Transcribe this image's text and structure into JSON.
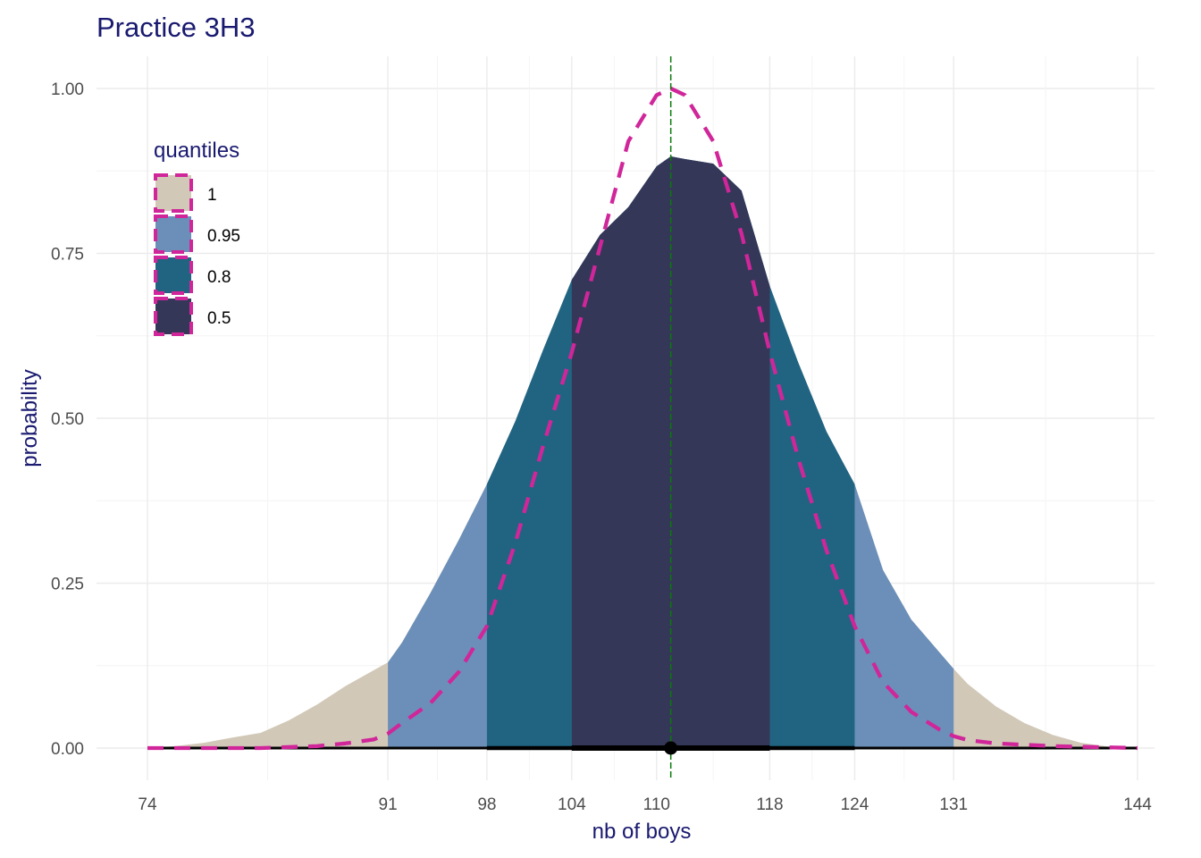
{
  "chart_data": {
    "type": "area",
    "title": "Practice 3H3",
    "xlabel": "nb of boys",
    "ylabel": "probability",
    "xlim": [
      74,
      144
    ],
    "ylim": [
      0,
      1
    ],
    "x_ticks": [
      74,
      91,
      98,
      104,
      110,
      118,
      124,
      131,
      144
    ],
    "y_ticks": [
      "0.00",
      "0.25",
      "0.50",
      "0.75",
      "1.00"
    ],
    "grid": true,
    "legend": {
      "title": "quantiles",
      "placement": "top-left",
      "items": [
        {
          "label": "1",
          "color": "#d1c8b7"
        },
        {
          "label": "0.95",
          "color": "#6b8fb8"
        },
        {
          "label": "0.8",
          "color": "#206481"
        },
        {
          "label": "0.5",
          "color": "#343758"
        }
      ]
    },
    "density_series": {
      "x": [
        74,
        76,
        78,
        80,
        82,
        84,
        86,
        88,
        90,
        91,
        92,
        94,
        96,
        98,
        100,
        102,
        104,
        106,
        108,
        110,
        111,
        112,
        114,
        116,
        118,
        120,
        122,
        124,
        126,
        128,
        130,
        131,
        132,
        134,
        136,
        138,
        140,
        142,
        144
      ],
      "y": [
        0.0,
        0.003,
        0.008,
        0.016,
        0.023,
        0.042,
        0.066,
        0.094,
        0.118,
        0.13,
        0.16,
        0.235,
        0.315,
        0.4,
        0.495,
        0.605,
        0.71,
        0.778,
        0.82,
        0.882,
        0.897,
        0.893,
        0.886,
        0.845,
        0.7,
        0.585,
        0.48,
        0.4,
        0.27,
        0.195,
        0.145,
        0.12,
        0.097,
        0.063,
        0.038,
        0.02,
        0.008,
        0.002,
        0.0
      ]
    },
    "quantile_bands": [
      {
        "level": "1",
        "from": 74,
        "to": 144,
        "color": "#d1c8b7"
      },
      {
        "level": "0.95",
        "from": 91,
        "to": 131,
        "color": "#6b8fb8"
      },
      {
        "level": "0.8",
        "from": 98,
        "to": 124,
        "color": "#206481"
      },
      {
        "level": "0.5",
        "from": 104,
        "to": 118,
        "color": "#343758"
      }
    ],
    "reference_density": {
      "style": "dashed",
      "color": "#d0269a",
      "x": [
        74,
        82,
        86,
        88,
        90,
        91,
        92,
        94,
        96,
        98,
        100,
        102,
        104,
        106,
        108,
        110,
        111,
        112,
        114,
        116,
        118,
        120,
        122,
        124,
        126,
        128,
        130,
        131,
        132,
        134,
        138,
        144
      ],
      "y": [
        0.0,
        0.0,
        0.003,
        0.007,
        0.013,
        0.022,
        0.038,
        0.068,
        0.115,
        0.185,
        0.31,
        0.46,
        0.6,
        0.76,
        0.92,
        0.99,
        1.0,
        0.99,
        0.92,
        0.78,
        0.6,
        0.44,
        0.3,
        0.185,
        0.1,
        0.055,
        0.028,
        0.018,
        0.012,
        0.007,
        0.003,
        0.0
      ]
    },
    "observed_line": {
      "x": 111,
      "color": "#0b7a0b",
      "style": "dashed"
    },
    "point_interval": {
      "point": 111,
      "intervals": [
        {
          "from": 74,
          "to": 144,
          "weight": "thin"
        },
        {
          "from": 104,
          "to": 118,
          "weight": "thick"
        }
      ]
    }
  }
}
